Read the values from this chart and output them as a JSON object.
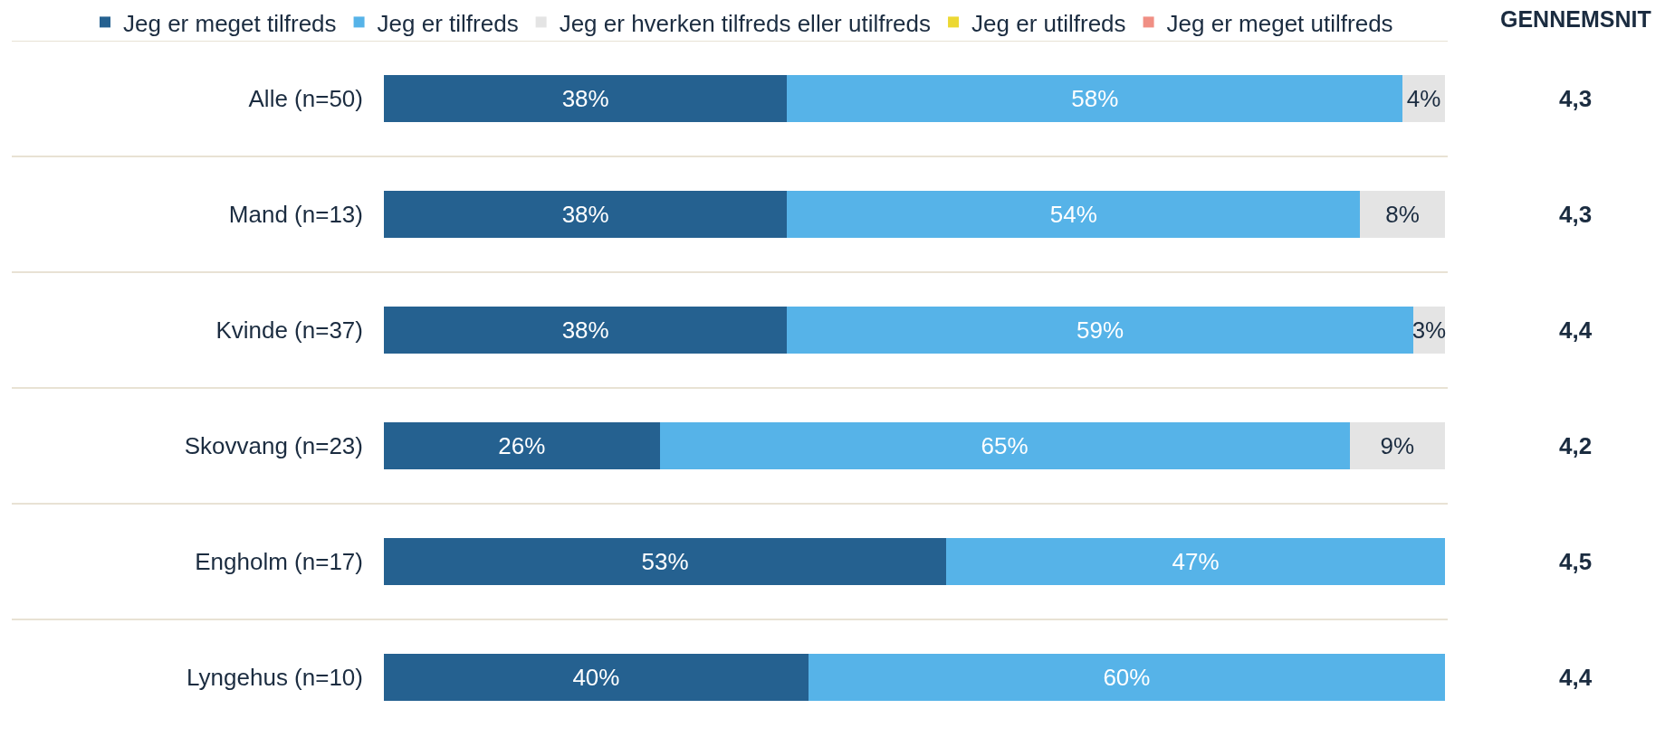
{
  "chart_data": {
    "type": "bar",
    "orientation": "horizontal",
    "stacked": true,
    "categories": [
      "Alle (n=50)",
      "Mand (n=13)",
      "Kvinde (n=37)",
      "Skovvang (n=23)",
      "Engholm (n=17)",
      "Lyngehus (n=10)"
    ],
    "series": [
      {
        "name": "Jeg er meget tilfreds",
        "color": "#256190",
        "values": [
          38,
          38,
          38,
          26,
          53,
          40
        ],
        "value_labels": [
          "38%",
          "38%",
          "38%",
          "26%",
          "53%",
          "40%"
        ]
      },
      {
        "name": "Jeg er tilfreds",
        "color": "#56b3e8",
        "values": [
          58,
          54,
          59,
          65,
          47,
          60
        ],
        "value_labels": [
          "58%",
          "54%",
          "59%",
          "65%",
          "47%",
          "60%"
        ]
      },
      {
        "name": "Jeg er hverken tilfreds eller utilfreds",
        "color": "#e4e4e4",
        "values": [
          4,
          8,
          3,
          9,
          0,
          0
        ],
        "value_labels": [
          "4%",
          "8%",
          "3%",
          "9%",
          null,
          null
        ]
      },
      {
        "name": "Jeg er utilfreds",
        "color": "#ecd833",
        "values": [
          0,
          0,
          0,
          0,
          0,
          0
        ],
        "value_labels": [
          null,
          null,
          null,
          null,
          null,
          null
        ]
      },
      {
        "name": "Jeg er meget utilfreds",
        "color": "#f08f84",
        "values": [
          0,
          0,
          0,
          0,
          0,
          0
        ],
        "value_labels": [
          null,
          null,
          null,
          null,
          null,
          null
        ]
      }
    ],
    "xlim": [
      0,
      100
    ],
    "tick_labels": "y",
    "grid": "y",
    "legend": "top",
    "annotations": [
      "GENNEMSNIT",
      "4,3",
      "4,3",
      "4,4",
      "4,2",
      "4,5",
      "4,4"
    ]
  }
}
